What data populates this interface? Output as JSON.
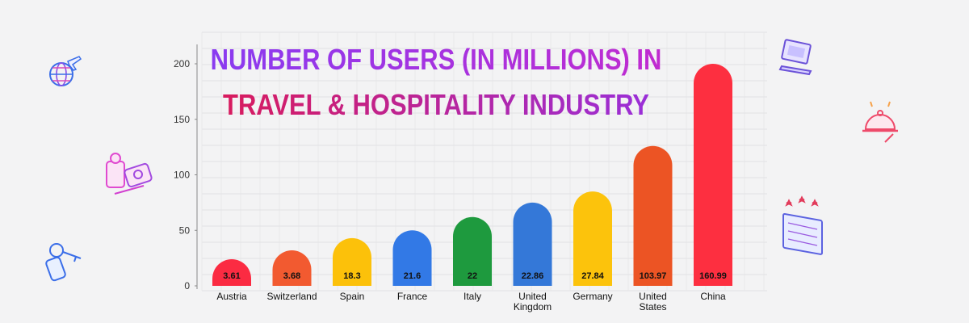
{
  "title_line1": "NUMBER OF USERS (IN MILLIONS) IN",
  "title_line2": "TRAVEL & HOSPITALITY INDUSTRY",
  "colors": {
    "title_line1_start": "#8a3bf0",
    "title_line1_end": "#c02bd0",
    "title_line2_start": "#d81b5e",
    "title_line2_end": "#9a2fd8",
    "axis_text": "#333333",
    "label_text": "#111111",
    "background": "#f3f3f4",
    "grid": "#e2e2e5"
  },
  "icons": [
    "globe-plane-icon",
    "travel-bag-telephone-icon",
    "hotel-key-icon",
    "laptop-icon",
    "service-bell-icon",
    "hotel-building-icon"
  ],
  "chart_data": {
    "type": "bar",
    "title": "NUMBER OF USERS (IN MILLIONS) IN TRAVEL & HOSPITALITY INDUSTRY",
    "categories": [
      "Austria",
      "Switzerland",
      "Spain",
      "France",
      "Italy",
      "United Kingdom",
      "Germany",
      "United States",
      "China"
    ],
    "category_lines": [
      [
        "Austria"
      ],
      [
        "Switzerland"
      ],
      [
        "Spain"
      ],
      [
        "France"
      ],
      [
        "Italy"
      ],
      [
        "United",
        "Kingdom"
      ],
      [
        "Germany"
      ],
      [
        "United",
        "States"
      ],
      [
        "China"
      ]
    ],
    "values": [
      3.61,
      3.68,
      18.3,
      21.6,
      22,
      22.86,
      27.84,
      103.97,
      160.99
    ],
    "value_labels": [
      "3.61",
      "3.68",
      "18.3",
      "21.6",
      "22",
      "22.86",
      "27.84",
      "103.97",
      "160.99"
    ],
    "bar_heights": [
      24,
      32,
      43,
      50,
      62,
      75,
      85,
      126,
      200
    ],
    "bar_colors": [
      "#fb2b42",
      "#f25a30",
      "#fcc10a",
      "#3279e6",
      "#1e9a3e",
      "#3478d8",
      "#fcc30c",
      "#ec5424",
      "#fd2f40"
    ],
    "y_ticks": [
      0,
      50,
      100,
      150,
      200
    ],
    "ylim": [
      0,
      200
    ],
    "xlabel": "",
    "ylabel": "",
    "grid": true,
    "legend": "none"
  }
}
